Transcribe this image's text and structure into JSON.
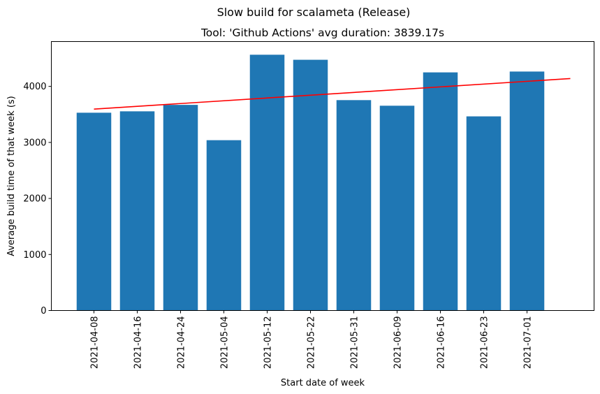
{
  "chart_data": {
    "type": "bar",
    "suptitle": "Slow build for scalameta (Release)",
    "title": "Tool: 'Github Actions' avg duration: 3839.17s",
    "xlabel": "Start date of week",
    "ylabel": "Average build time of that week (s)",
    "categories": [
      "2021-04-08",
      "2021-04-16",
      "2021-04-24",
      "2021-05-04",
      "2021-05-12",
      "2021-05-22",
      "2021-05-31",
      "2021-06-09",
      "2021-06-16",
      "2021-06-23",
      "2021-07-01"
    ],
    "values": [
      3530,
      3555,
      3670,
      3040,
      4565,
      4475,
      3755,
      3655,
      4250,
      3465,
      4265
    ],
    "ylim": [
      0,
      4800
    ],
    "yticks": [
      0,
      1000,
      2000,
      3000,
      4000
    ],
    "bar_color": "#1f77b4",
    "trend_line": {
      "color": "#ff0000",
      "x_start": "2021-04-08",
      "y_start": 3595,
      "x_end": "2021-07-09",
      "y_end": 4140
    },
    "grid": false,
    "legend": "none"
  }
}
